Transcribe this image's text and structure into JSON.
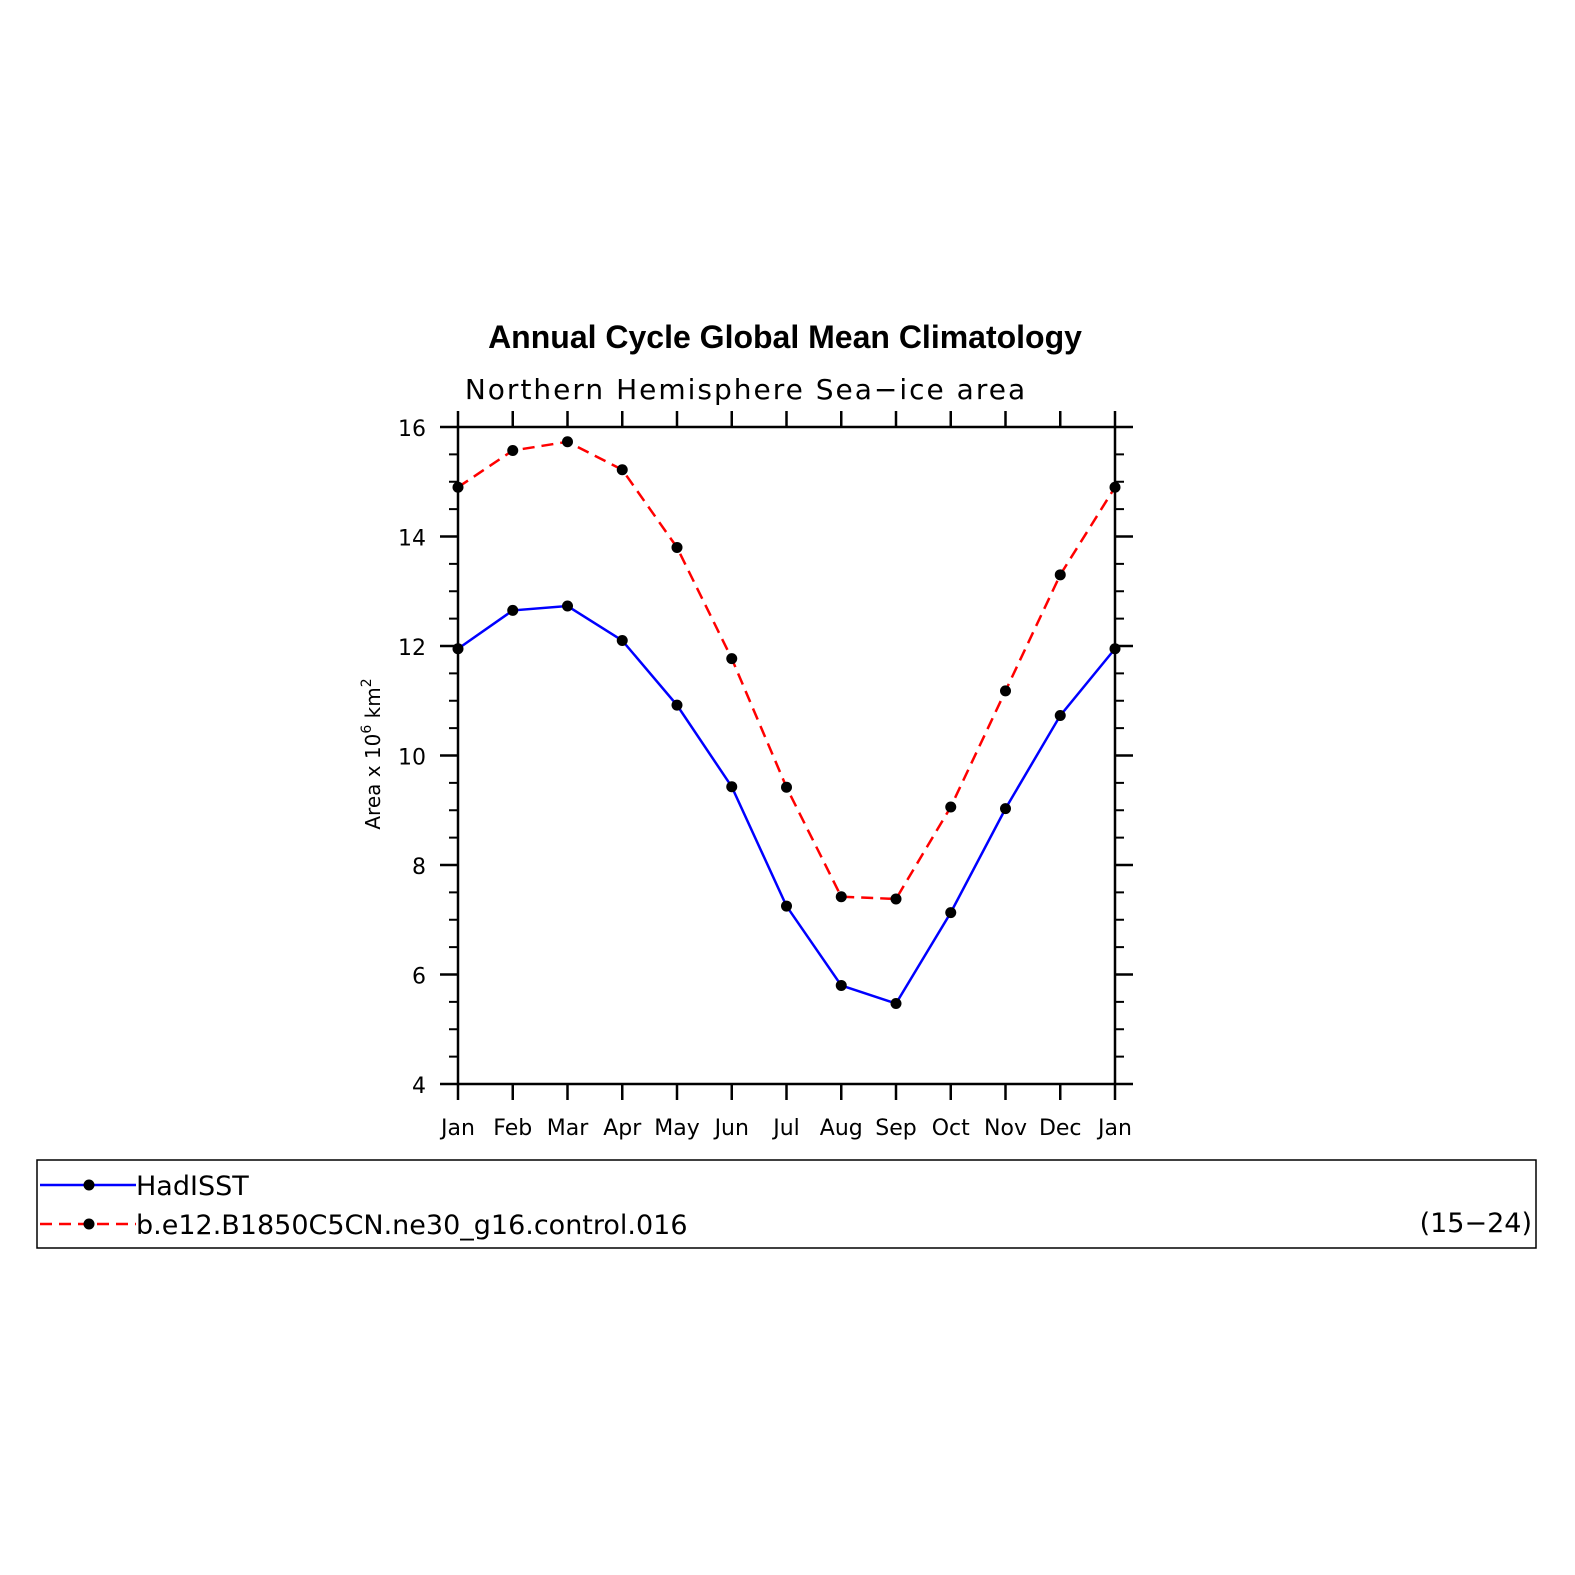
{
  "chart_data": {
    "type": "line",
    "title": "Annual Cycle Global Mean Climatology",
    "subtitle": "Northern Hemisphere Sea−ice area",
    "ylabel_prefix": "Area x 10",
    "ylabel_exp1": "6",
    "ylabel_unit": " km",
    "ylabel_exp2": "2",
    "categories": [
      "Jan",
      "Feb",
      "Mar",
      "Apr",
      "May",
      "Jun",
      "Jul",
      "Aug",
      "Sep",
      "Oct",
      "Nov",
      "Dec",
      "Jan"
    ],
    "ylim": [
      4,
      16
    ],
    "yticks": [
      4,
      6,
      8,
      10,
      12,
      14,
      16
    ],
    "series": [
      {
        "name": "HadISST",
        "color": "#0000ff",
        "dash": "solid",
        "values": [
          11.95,
          12.65,
          12.73,
          12.1,
          10.92,
          9.43,
          7.25,
          5.8,
          5.47,
          7.13,
          9.03,
          10.73,
          11.95
        ]
      },
      {
        "name": "b.e12.B1850C5CN.ne30_g16.control.016",
        "color": "#ff0000",
        "dash": "dashed",
        "values": [
          14.9,
          15.57,
          15.73,
          15.22,
          13.8,
          11.77,
          9.42,
          7.42,
          7.38,
          9.06,
          11.18,
          13.3,
          14.9
        ]
      }
    ],
    "legend": {
      "placement": "bottom",
      "years": "(15−24)"
    },
    "grid": false,
    "marker": "filled-circle"
  }
}
